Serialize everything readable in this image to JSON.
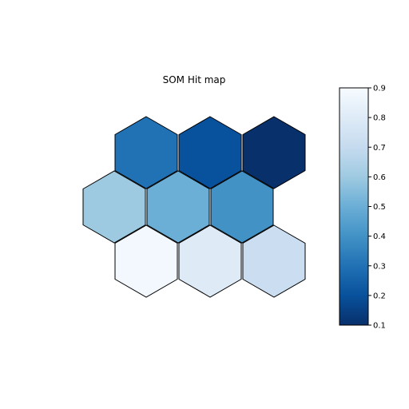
{
  "chart_data": {
    "type": "heatmap",
    "title": "SOM Hit map",
    "grid": {
      "rows": 3,
      "cols": 3,
      "layout": "hexagonal"
    },
    "values": [
      [
        0.88,
        0.8,
        0.72
      ],
      [
        0.6,
        0.5,
        0.4
      ],
      [
        0.3,
        0.2,
        0.1
      ]
    ],
    "colormap": "Blues_r",
    "colorbar": {
      "min": 0.1,
      "max": 0.9,
      "ticks": [
        "0.1",
        "0.2",
        "0.3",
        "0.4",
        "0.5",
        "0.6",
        "0.7",
        "0.8",
        "0.9"
      ]
    }
  }
}
